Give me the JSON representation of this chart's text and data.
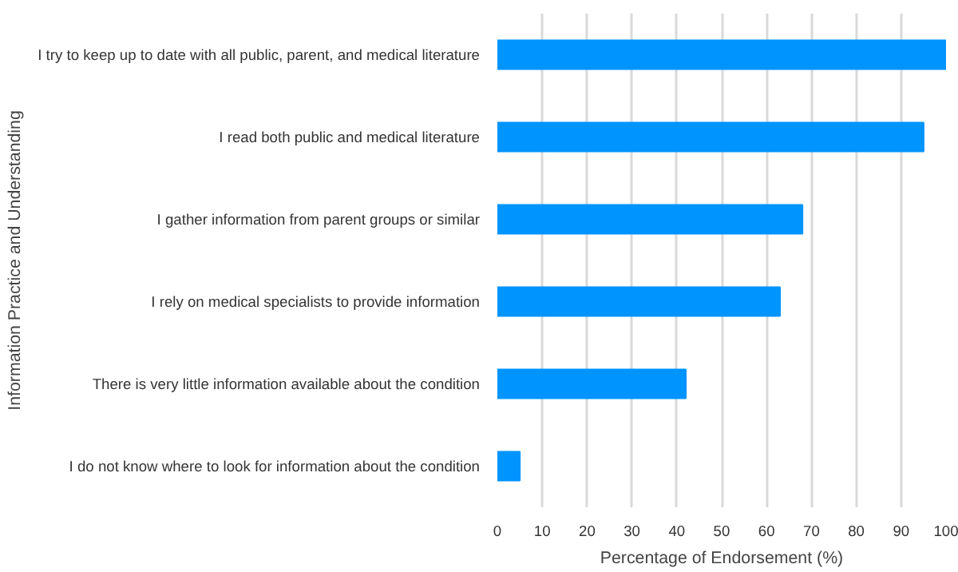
{
  "chart_data": {
    "type": "bar",
    "orientation": "horizontal",
    "xlabel": "Percentage of Endorsement (%)",
    "ylabel": "Information Practice and Understanding",
    "categories": [
      "I try to keep up to date with all public, parent, and medical literature",
      "I read both public and medical literature",
      "I gather information from parent groups or similar",
      "I rely on medical specialists to provide information",
      "There is very little information available about the condition",
      "I do not know where to look for information about the condition"
    ],
    "values": [
      100,
      95,
      68,
      63,
      42,
      5
    ],
    "color": "#0094ff",
    "xlim": [
      0,
      100
    ],
    "xticks": [
      0,
      10,
      20,
      30,
      40,
      50,
      60,
      70,
      80,
      90,
      100
    ],
    "grid": "x"
  }
}
